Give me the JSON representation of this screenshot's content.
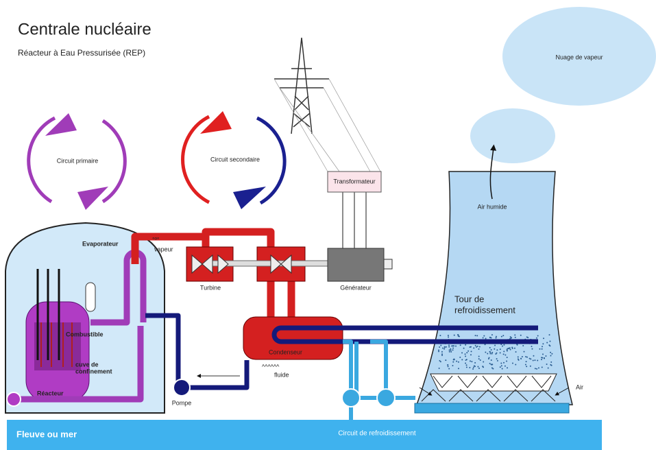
{
  "header": {
    "title": "Centrale nucléaire",
    "subtitle": "Réacteur à Eau Pressurisée (REP)"
  },
  "labels": {
    "cloud": "Nuage de vapeur",
    "primary_circuit": "Circuit primaire",
    "secondary_circuit": "Circuit secondaire",
    "transformer": "Transformateur",
    "humid_air": "Air humide",
    "evaporator": "Evaporateur",
    "steam": "vapeur",
    "turbine": "Turbine",
    "generator": "Générateur",
    "tower": [
      "Tour de",
      "refroidissement"
    ],
    "fuel": "Combustible",
    "vessel": [
      "cuve de",
      "confinement"
    ],
    "reactor": "Réacteur",
    "condenser": "Condenseur",
    "fluid": "fluide",
    "pump": "Pompe",
    "air": "Air",
    "river": "Fleuve ou mer",
    "cooling_circuit": "Circuit de refroidissement"
  }
}
